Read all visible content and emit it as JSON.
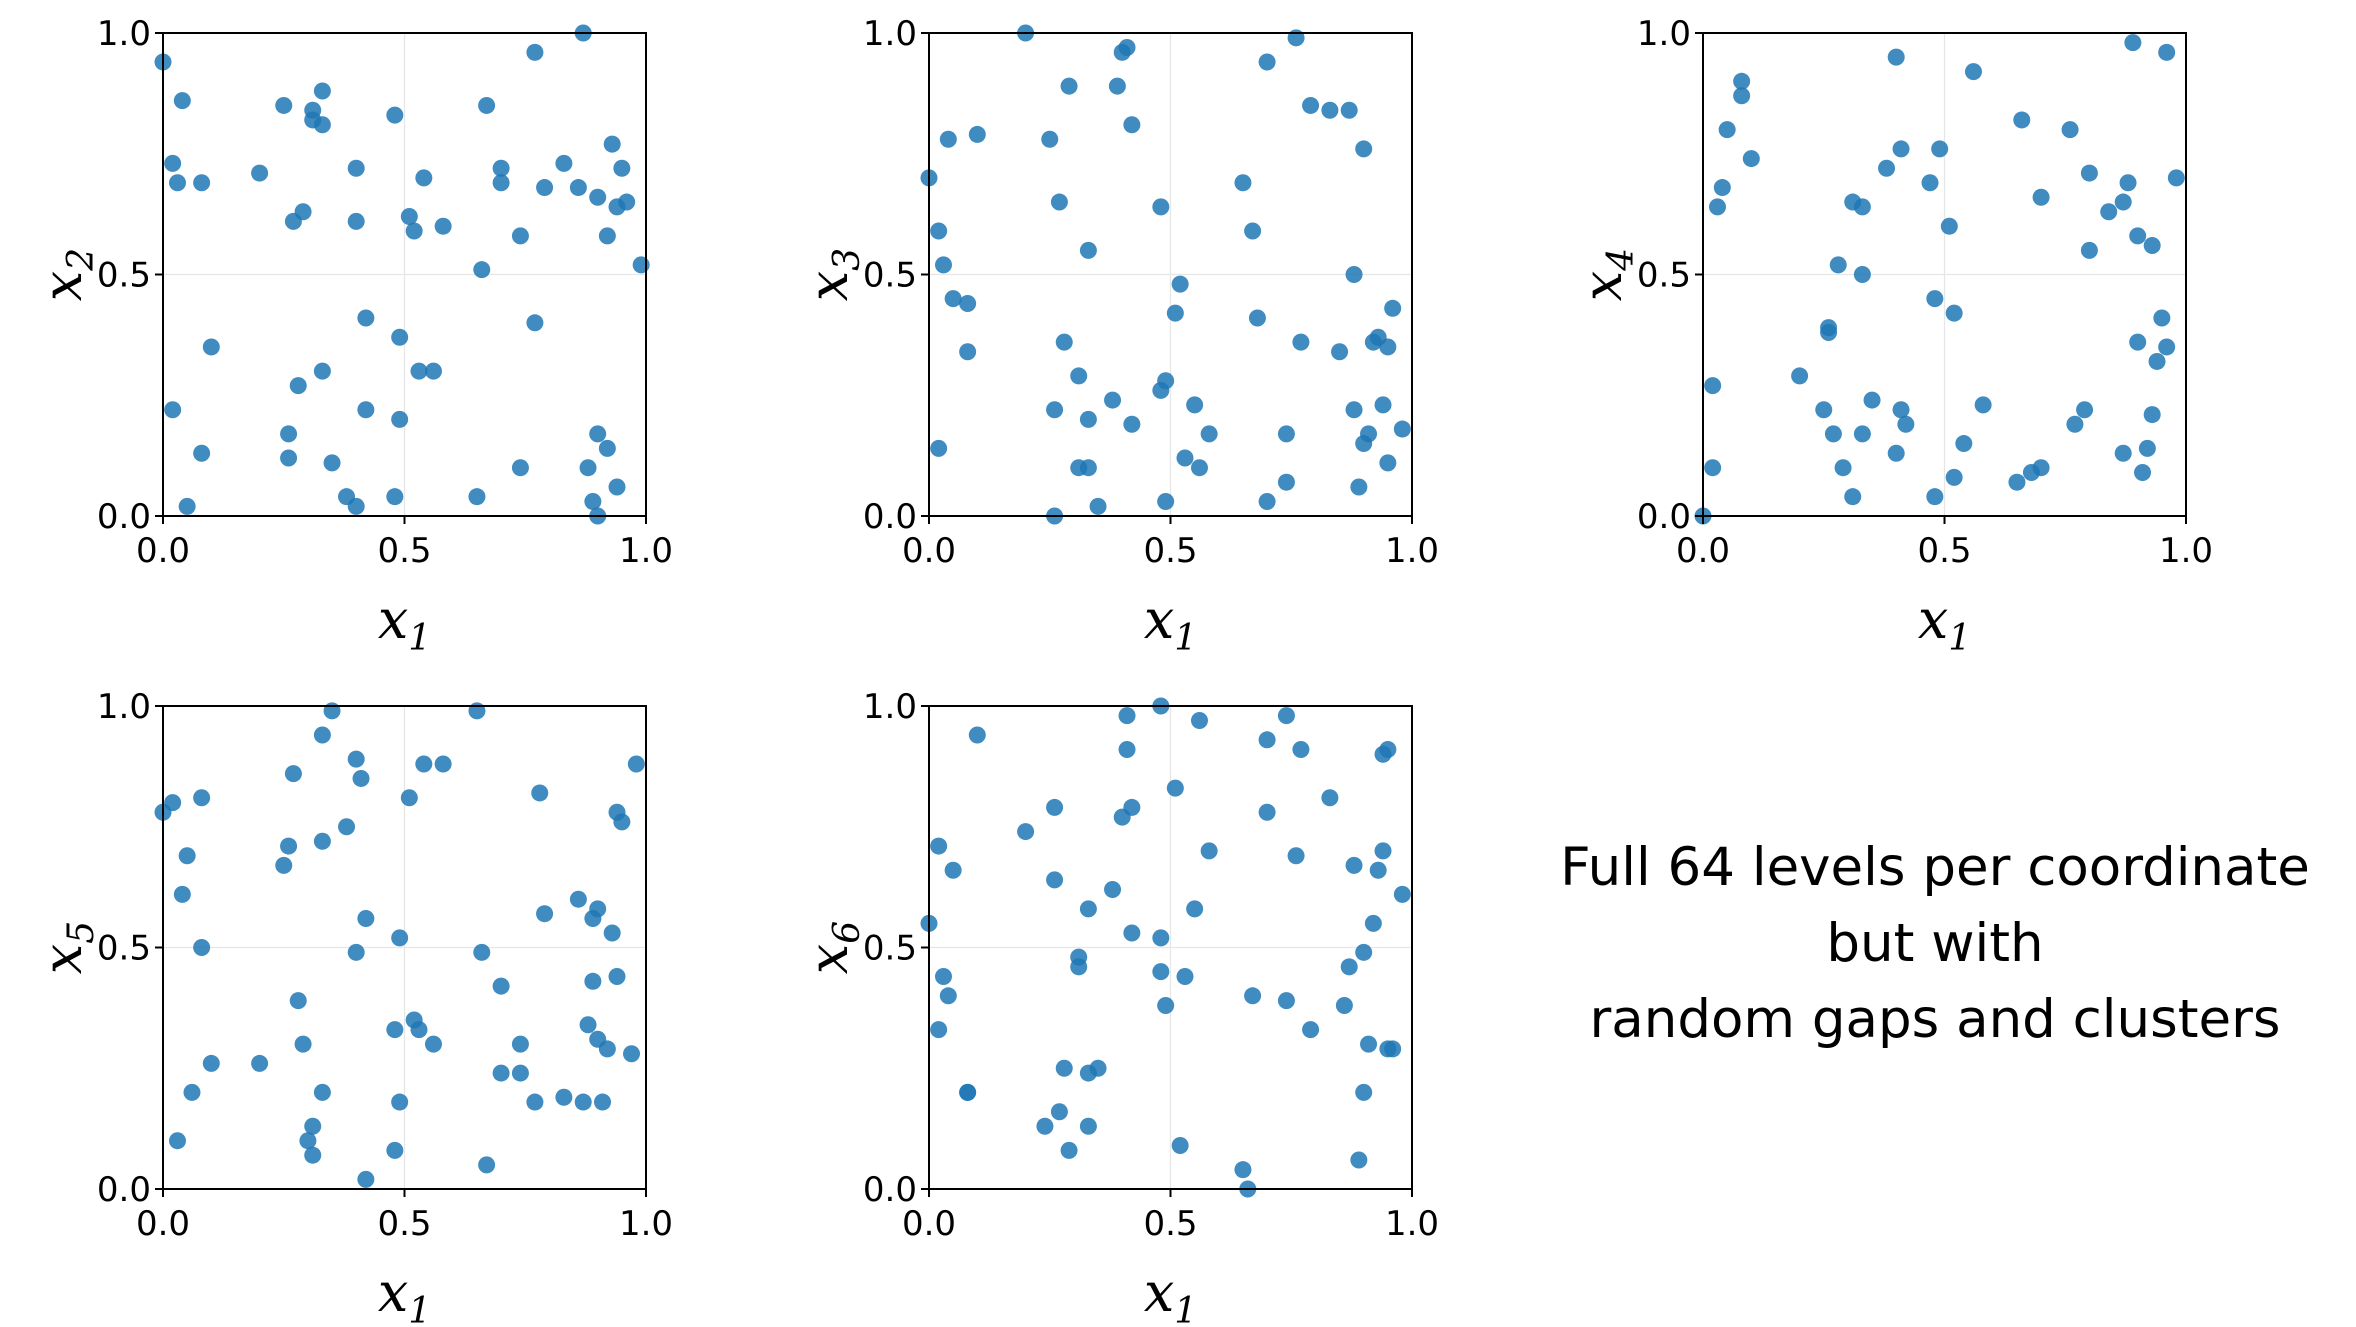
{
  "chart_data": [
    {
      "type": "scatter",
      "xlabel": "x",
      "xlabel_sub": "1",
      "ylabel": "x",
      "ylabel_sub": "2",
      "xlim": [
        0,
        1
      ],
      "ylim": [
        0,
        1
      ],
      "xticks": [
        "0.0",
        "0.5",
        "1.0"
      ],
      "yticks": [
        "0.0",
        "0.5",
        "1.0"
      ],
      "grid": true,
      "points": [
        [
          0.0,
          0.94
        ],
        [
          0.02,
          0.73
        ],
        [
          0.03,
          0.69
        ],
        [
          0.04,
          0.86
        ],
        [
          0.08,
          0.69
        ],
        [
          0.2,
          0.71
        ],
        [
          0.25,
          0.85
        ],
        [
          0.27,
          0.61
        ],
        [
          0.29,
          0.63
        ],
        [
          0.31,
          0.84
        ],
        [
          0.31,
          0.82
        ],
        [
          0.33,
          0.88
        ],
        [
          0.33,
          0.81
        ],
        [
          0.4,
          0.72
        ],
        [
          0.4,
          0.61
        ],
        [
          0.48,
          0.83
        ],
        [
          0.51,
          0.62
        ],
        [
          0.52,
          0.59
        ],
        [
          0.54,
          0.7
        ],
        [
          0.58,
          0.6
        ],
        [
          0.67,
          0.85
        ],
        [
          0.7,
          0.72
        ],
        [
          0.7,
          0.69
        ],
        [
          0.74,
          0.58
        ],
        [
          0.77,
          0.96
        ],
        [
          0.79,
          0.68
        ],
        [
          0.83,
          0.73
        ],
        [
          0.86,
          0.68
        ],
        [
          0.87,
          1.0
        ],
        [
          0.9,
          0.66
        ],
        [
          0.92,
          0.58
        ],
        [
          0.93,
          0.77
        ],
        [
          0.94,
          0.64
        ],
        [
          0.95,
          0.72
        ],
        [
          0.96,
          0.65
        ],
        [
          0.99,
          0.52
        ],
        [
          0.02,
          0.22
        ],
        [
          0.05,
          0.02
        ],
        [
          0.08,
          0.13
        ],
        [
          0.1,
          0.35
        ],
        [
          0.26,
          0.17
        ],
        [
          0.26,
          0.12
        ],
        [
          0.28,
          0.27
        ],
        [
          0.33,
          0.3
        ],
        [
          0.35,
          0.11
        ],
        [
          0.38,
          0.04
        ],
        [
          0.4,
          0.02
        ],
        [
          0.42,
          0.41
        ],
        [
          0.42,
          0.22
        ],
        [
          0.48,
          0.04
        ],
        [
          0.49,
          0.37
        ],
        [
          0.49,
          0.2
        ],
        [
          0.53,
          0.3
        ],
        [
          0.56,
          0.3
        ],
        [
          0.65,
          0.04
        ],
        [
          0.66,
          0.51
        ],
        [
          0.74,
          0.1
        ],
        [
          0.77,
          0.4
        ],
        [
          0.88,
          0.1
        ],
        [
          0.89,
          0.03
        ],
        [
          0.9,
          0.0
        ],
        [
          0.9,
          0.17
        ],
        [
          0.92,
          0.14
        ],
        [
          0.94,
          0.06
        ]
      ]
    },
    {
      "type": "scatter",
      "xlabel": "x",
      "xlabel_sub": "1",
      "ylabel": "x",
      "ylabel_sub": "3",
      "xlim": [
        0,
        1
      ],
      "ylim": [
        0,
        1
      ],
      "xticks": [
        "0.0",
        "0.5",
        "1.0"
      ],
      "yticks": [
        "0.0",
        "0.5",
        "1.0"
      ],
      "grid": true,
      "points": [
        [
          0.0,
          0.7
        ],
        [
          0.02,
          0.59
        ],
        [
          0.03,
          0.52
        ],
        [
          0.04,
          0.78
        ],
        [
          0.05,
          0.45
        ],
        [
          0.08,
          0.44
        ],
        [
          0.08,
          0.34
        ],
        [
          0.1,
          0.79
        ],
        [
          0.2,
          1.0
        ],
        [
          0.25,
          0.78
        ],
        [
          0.27,
          0.65
        ],
        [
          0.29,
          0.89
        ],
        [
          0.39,
          0.89
        ],
        [
          0.4,
          0.96
        ],
        [
          0.41,
          0.97
        ],
        [
          0.42,
          0.81
        ],
        [
          0.48,
          0.64
        ],
        [
          0.65,
          0.69
        ],
        [
          0.67,
          0.59
        ],
        [
          0.7,
          0.94
        ],
        [
          0.76,
          0.99
        ],
        [
          0.79,
          0.85
        ],
        [
          0.83,
          0.84
        ],
        [
          0.87,
          0.84
        ],
        [
          0.88,
          0.5
        ],
        [
          0.9,
          0.76
        ],
        [
          0.96,
          0.43
        ],
        [
          0.02,
          0.14
        ],
        [
          0.26,
          0.22
        ],
        [
          0.26,
          0.0
        ],
        [
          0.28,
          0.36
        ],
        [
          0.31,
          0.29
        ],
        [
          0.31,
          0.1
        ],
        [
          0.33,
          0.55
        ],
        [
          0.33,
          0.2
        ],
        [
          0.33,
          0.1
        ],
        [
          0.35,
          0.02
        ],
        [
          0.38,
          0.24
        ],
        [
          0.42,
          0.19
        ],
        [
          0.48,
          0.26
        ],
        [
          0.49,
          0.28
        ],
        [
          0.49,
          0.03
        ],
        [
          0.51,
          0.42
        ],
        [
          0.52,
          0.48
        ],
        [
          0.53,
          0.12
        ],
        [
          0.55,
          0.23
        ],
        [
          0.56,
          0.1
        ],
        [
          0.58,
          0.17
        ],
        [
          0.68,
          0.41
        ],
        [
          0.7,
          0.03
        ],
        [
          0.74,
          0.17
        ],
        [
          0.74,
          0.07
        ],
        [
          0.77,
          0.36
        ],
        [
          0.85,
          0.34
        ],
        [
          0.88,
          0.22
        ],
        [
          0.89,
          0.06
        ],
        [
          0.9,
          0.15
        ],
        [
          0.91,
          0.17
        ],
        [
          0.92,
          0.36
        ],
        [
          0.93,
          0.37
        ],
        [
          0.94,
          0.23
        ],
        [
          0.95,
          0.11
        ],
        [
          0.95,
          0.35
        ],
        [
          0.98,
          0.18
        ]
      ]
    },
    {
      "type": "scatter",
      "xlabel": "x",
      "xlabel_sub": "1",
      "ylabel": "x",
      "ylabel_sub": "4",
      "xlim": [
        0,
        1
      ],
      "ylim": [
        0,
        1
      ],
      "xticks": [
        "0.0",
        "0.5",
        "1.0"
      ],
      "yticks": [
        "0.0",
        "0.5",
        "1.0"
      ],
      "grid": true,
      "points": [
        [
          0.0,
          0.0
        ],
        [
          0.02,
          0.1
        ],
        [
          0.02,
          0.27
        ],
        [
          0.03,
          0.64
        ],
        [
          0.04,
          0.68
        ],
        [
          0.05,
          0.8
        ],
        [
          0.08,
          0.87
        ],
        [
          0.08,
          0.9
        ],
        [
          0.1,
          0.74
        ],
        [
          0.2,
          0.29
        ],
        [
          0.25,
          0.22
        ],
        [
          0.26,
          0.39
        ],
        [
          0.26,
          0.38
        ],
        [
          0.27,
          0.17
        ],
        [
          0.28,
          0.52
        ],
        [
          0.29,
          0.1
        ],
        [
          0.31,
          0.04
        ],
        [
          0.31,
          0.65
        ],
        [
          0.33,
          0.64
        ],
        [
          0.33,
          0.5
        ],
        [
          0.33,
          0.17
        ],
        [
          0.35,
          0.24
        ],
        [
          0.38,
          0.72
        ],
        [
          0.4,
          0.13
        ],
        [
          0.4,
          0.95
        ],
        [
          0.41,
          0.76
        ],
        [
          0.41,
          0.22
        ],
        [
          0.42,
          0.19
        ],
        [
          0.47,
          0.69
        ],
        [
          0.48,
          0.04
        ],
        [
          0.48,
          0.45
        ],
        [
          0.49,
          0.76
        ],
        [
          0.51,
          0.6
        ],
        [
          0.52,
          0.42
        ],
        [
          0.52,
          0.08
        ],
        [
          0.54,
          0.15
        ],
        [
          0.56,
          0.92
        ],
        [
          0.58,
          0.23
        ],
        [
          0.65,
          0.07
        ],
        [
          0.66,
          0.82
        ],
        [
          0.68,
          0.09
        ],
        [
          0.7,
          0.66
        ],
        [
          0.7,
          0.1
        ],
        [
          0.76,
          0.8
        ],
        [
          0.77,
          0.19
        ],
        [
          0.79,
          0.22
        ],
        [
          0.8,
          0.71
        ],
        [
          0.8,
          0.55
        ],
        [
          0.84,
          0.63
        ],
        [
          0.87,
          0.65
        ],
        [
          0.87,
          0.13
        ],
        [
          0.88,
          0.69
        ],
        [
          0.89,
          0.98
        ],
        [
          0.9,
          0.58
        ],
        [
          0.9,
          0.36
        ],
        [
          0.91,
          0.09
        ],
        [
          0.92,
          0.14
        ],
        [
          0.93,
          0.56
        ],
        [
          0.93,
          0.21
        ],
        [
          0.94,
          0.32
        ],
        [
          0.95,
          0.41
        ],
        [
          0.96,
          0.96
        ],
        [
          0.96,
          0.35
        ],
        [
          0.98,
          0.7
        ]
      ]
    },
    {
      "type": "scatter",
      "xlabel": "x",
      "xlabel_sub": "1",
      "ylabel": "x",
      "ylabel_sub": "5",
      "xlim": [
        0,
        1
      ],
      "ylim": [
        0,
        1
      ],
      "xticks": [
        "0.0",
        "0.5",
        "1.0"
      ],
      "yticks": [
        "0.0",
        "0.5",
        "1.0"
      ],
      "grid": true,
      "points": [
        [
          0.0,
          0.78
        ],
        [
          0.02,
          0.8
        ],
        [
          0.03,
          0.1
        ],
        [
          0.04,
          0.61
        ],
        [
          0.05,
          0.69
        ],
        [
          0.06,
          0.2
        ],
        [
          0.08,
          0.81
        ],
        [
          0.08,
          0.5
        ],
        [
          0.1,
          0.26
        ],
        [
          0.2,
          0.26
        ],
        [
          0.25,
          0.67
        ],
        [
          0.26,
          0.71
        ],
        [
          0.27,
          0.86
        ],
        [
          0.28,
          0.39
        ],
        [
          0.29,
          0.3
        ],
        [
          0.3,
          0.1
        ],
        [
          0.31,
          0.13
        ],
        [
          0.31,
          0.07
        ],
        [
          0.33,
          0.94
        ],
        [
          0.33,
          0.72
        ],
        [
          0.33,
          0.2
        ],
        [
          0.35,
          0.99
        ],
        [
          0.38,
          0.75
        ],
        [
          0.4,
          0.89
        ],
        [
          0.4,
          0.49
        ],
        [
          0.41,
          0.85
        ],
        [
          0.42,
          0.56
        ],
        [
          0.42,
          0.02
        ],
        [
          0.48,
          0.33
        ],
        [
          0.48,
          0.08
        ],
        [
          0.49,
          0.52
        ],
        [
          0.49,
          0.18
        ],
        [
          0.51,
          0.81
        ],
        [
          0.52,
          0.35
        ],
        [
          0.53,
          0.33
        ],
        [
          0.54,
          0.88
        ],
        [
          0.56,
          0.3
        ],
        [
          0.58,
          0.88
        ],
        [
          0.65,
          0.99
        ],
        [
          0.66,
          0.49
        ],
        [
          0.67,
          0.05
        ],
        [
          0.7,
          0.42
        ],
        [
          0.7,
          0.24
        ],
        [
          0.74,
          0.3
        ],
        [
          0.74,
          0.24
        ],
        [
          0.77,
          0.18
        ],
        [
          0.78,
          0.82
        ],
        [
          0.79,
          0.57
        ],
        [
          0.83,
          0.19
        ],
        [
          0.86,
          0.6
        ],
        [
          0.87,
          0.18
        ],
        [
          0.88,
          0.34
        ],
        [
          0.89,
          0.43
        ],
        [
          0.89,
          0.56
        ],
        [
          0.9,
          0.58
        ],
        [
          0.9,
          0.31
        ],
        [
          0.91,
          0.18
        ],
        [
          0.92,
          0.29
        ],
        [
          0.93,
          0.53
        ],
        [
          0.94,
          0.44
        ],
        [
          0.94,
          0.78
        ],
        [
          0.95,
          0.76
        ],
        [
          0.97,
          0.28
        ],
        [
          0.98,
          0.88
        ]
      ]
    },
    {
      "type": "scatter",
      "xlabel": "x",
      "xlabel_sub": "1",
      "ylabel": "x",
      "ylabel_sub": "6",
      "xlim": [
        0,
        1
      ],
      "ylim": [
        0,
        1
      ],
      "xticks": [
        "0.0",
        "0.5",
        "1.0"
      ],
      "yticks": [
        "0.0",
        "0.5",
        "1.0"
      ],
      "grid": true,
      "points": [
        [
          0.0,
          0.55
        ],
        [
          0.02,
          0.71
        ],
        [
          0.02,
          0.33
        ],
        [
          0.03,
          0.44
        ],
        [
          0.04,
          0.4
        ],
        [
          0.05,
          0.66
        ],
        [
          0.08,
          0.2
        ],
        [
          0.08,
          0.2
        ],
        [
          0.1,
          0.94
        ],
        [
          0.2,
          0.74
        ],
        [
          0.24,
          0.13
        ],
        [
          0.26,
          0.79
        ],
        [
          0.26,
          0.64
        ],
        [
          0.27,
          0.16
        ],
        [
          0.28,
          0.25
        ],
        [
          0.29,
          0.08
        ],
        [
          0.31,
          0.48
        ],
        [
          0.31,
          0.46
        ],
        [
          0.33,
          0.58
        ],
        [
          0.33,
          0.24
        ],
        [
          0.33,
          0.13
        ],
        [
          0.35,
          0.25
        ],
        [
          0.38,
          0.62
        ],
        [
          0.4,
          0.77
        ],
        [
          0.41,
          0.98
        ],
        [
          0.41,
          0.91
        ],
        [
          0.42,
          0.79
        ],
        [
          0.42,
          0.53
        ],
        [
          0.48,
          1.0
        ],
        [
          0.48,
          0.52
        ],
        [
          0.48,
          0.45
        ],
        [
          0.49,
          0.38
        ],
        [
          0.51,
          0.83
        ],
        [
          0.52,
          0.09
        ],
        [
          0.53,
          0.44
        ],
        [
          0.55,
          0.58
        ],
        [
          0.56,
          0.97
        ],
        [
          0.58,
          0.7
        ],
        [
          0.65,
          0.04
        ],
        [
          0.66,
          0.0
        ],
        [
          0.67,
          0.4
        ],
        [
          0.7,
          0.93
        ],
        [
          0.7,
          0.78
        ],
        [
          0.74,
          0.98
        ],
        [
          0.74,
          0.39
        ],
        [
          0.76,
          0.69
        ],
        [
          0.77,
          0.91
        ],
        [
          0.79,
          0.33
        ],
        [
          0.83,
          0.81
        ],
        [
          0.86,
          0.38
        ],
        [
          0.87,
          0.46
        ],
        [
          0.88,
          0.67
        ],
        [
          0.89,
          0.06
        ],
        [
          0.9,
          0.49
        ],
        [
          0.9,
          0.2
        ],
        [
          0.91,
          0.3
        ],
        [
          0.92,
          0.55
        ],
        [
          0.93,
          0.66
        ],
        [
          0.94,
          0.7
        ],
        [
          0.94,
          0.9
        ],
        [
          0.95,
          0.91
        ],
        [
          0.95,
          0.29
        ],
        [
          0.96,
          0.29
        ],
        [
          0.98,
          0.61
        ]
      ]
    }
  ],
  "colors": {
    "marker": "#1f77b4",
    "grid": "#e6e6e6",
    "axis": "#000000"
  },
  "annotation": {
    "line1": "Full 64 levels per coordinate",
    "line2": "but with",
    "line3": "random gaps and clusters"
  }
}
